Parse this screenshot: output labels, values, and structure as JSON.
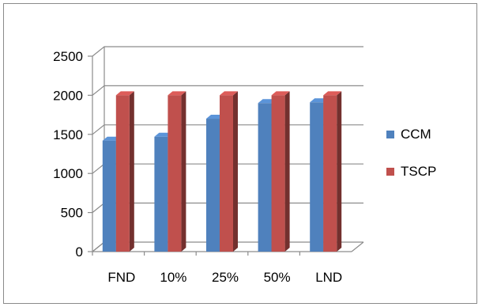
{
  "chart_data": {
    "type": "bar",
    "style": "3d-clustered-column",
    "categories": [
      "FND",
      "10%",
      "25%",
      "50%",
      "LND"
    ],
    "series": [
      {
        "name": "CCM",
        "values": [
          1420,
          1470,
          1700,
          1900,
          1910
        ],
        "color": "#4f81bd"
      },
      {
        "name": "TSCP",
        "values": [
          2000,
          2000,
          2000,
          2000,
          2000
        ],
        "color": "#c0504d"
      }
    ],
    "ylim": [
      0,
      2500
    ],
    "yticks": [
      "0",
      "500",
      "1000",
      "1500",
      "2000",
      "2500"
    ],
    "grid": true,
    "legend": "right"
  }
}
